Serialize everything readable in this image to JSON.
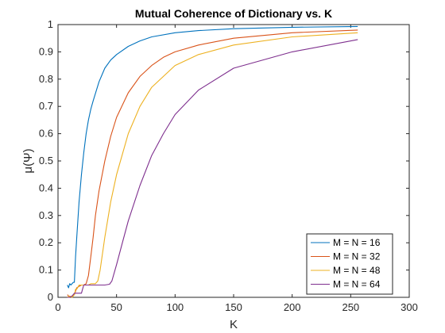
{
  "chart_data": {
    "type": "line",
    "title": "Mutual Coherence of Dictionary vs. K",
    "xlabel": "K",
    "ylabel": "μ(Ψ)",
    "xlim": [
      0,
      300
    ],
    "ylim": [
      0,
      1
    ],
    "xticks": [
      0,
      50,
      100,
      150,
      200,
      250,
      300
    ],
    "yticks": [
      0,
      0.1,
      0.2,
      0.3,
      0.4,
      0.5,
      0.6,
      0.7,
      0.8,
      0.9,
      1
    ],
    "grid": false,
    "legend_position": "bottom-right",
    "series": [
      {
        "name": "M = N = 16",
        "color": "#0072BD",
        "x": [
          8,
          9,
          10,
          11,
          12,
          13,
          14,
          15,
          16,
          18,
          20,
          22,
          24,
          26,
          28,
          30,
          35,
          40,
          45,
          50,
          60,
          70,
          80,
          100,
          120,
          150,
          200,
          256
        ],
        "y": [
          0.045,
          0.035,
          0.05,
          0.045,
          0.05,
          0.055,
          0.055,
          0.15,
          0.22,
          0.35,
          0.45,
          0.53,
          0.6,
          0.65,
          0.69,
          0.72,
          0.79,
          0.84,
          0.87,
          0.89,
          0.92,
          0.94,
          0.955,
          0.97,
          0.978,
          0.985,
          0.99,
          0.993
        ]
      },
      {
        "name": "M = N = 32",
        "color": "#D95319",
        "x": [
          8,
          10,
          12,
          14,
          16,
          18,
          20,
          22,
          24,
          26,
          28,
          30,
          32,
          35,
          40,
          45,
          50,
          60,
          70,
          80,
          90,
          100,
          120,
          150,
          200,
          256
        ],
        "y": [
          0.01,
          0.0,
          0.005,
          0.01,
          0.035,
          0.04,
          0.045,
          0.045,
          0.05,
          0.08,
          0.15,
          0.22,
          0.3,
          0.39,
          0.5,
          0.59,
          0.66,
          0.75,
          0.81,
          0.85,
          0.88,
          0.9,
          0.925,
          0.95,
          0.97,
          0.98
        ]
      },
      {
        "name": "M = N = 48",
        "color": "#EDB120",
        "x": [
          8,
          10,
          12,
          14,
          15,
          16,
          18,
          20,
          22,
          24,
          26,
          28,
          30,
          32,
          34,
          36,
          40,
          45,
          50,
          60,
          70,
          80,
          100,
          120,
          150,
          200,
          256
        ],
        "y": [
          0.0,
          0.005,
          0.0,
          0.01,
          0.03,
          0.03,
          0.045,
          0.045,
          0.045,
          0.045,
          0.045,
          0.05,
          0.05,
          0.05,
          0.06,
          0.1,
          0.22,
          0.35,
          0.45,
          0.6,
          0.7,
          0.77,
          0.85,
          0.89,
          0.925,
          0.955,
          0.97
        ]
      },
      {
        "name": "M = N = 64",
        "color": "#7E2F8E",
        "x": [
          8,
          10,
          12,
          14,
          16,
          18,
          20,
          21,
          22,
          24,
          26,
          28,
          30,
          35,
          40,
          44,
          46,
          50,
          55,
          60,
          70,
          80,
          90,
          100,
          120,
          150,
          200,
          256
        ],
        "y": [
          0.0,
          0.0,
          0.005,
          0.015,
          0.015,
          0.015,
          0.015,
          0.03,
          0.045,
          0.045,
          0.045,
          0.045,
          0.045,
          0.045,
          0.045,
          0.048,
          0.06,
          0.12,
          0.2,
          0.28,
          0.41,
          0.52,
          0.6,
          0.67,
          0.76,
          0.84,
          0.9,
          0.945
        ]
      }
    ]
  }
}
